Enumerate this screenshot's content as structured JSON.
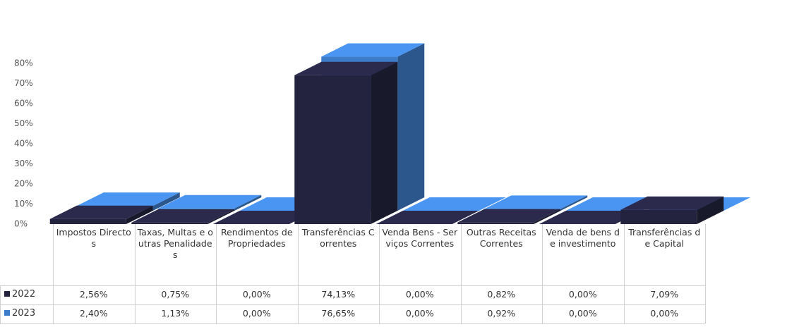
{
  "chart_data": {
    "type": "bar3d",
    "categories": [
      "Impostos Directos",
      "Taxas, Multas e outras Penalidades",
      "Rendimentos de Propriedades",
      "Transferências Correntes",
      "Venda Bens - Serviços Correntes",
      "Outras Receitas Correntes",
      "Venda de bens de investimento",
      "Transferências de Capital"
    ],
    "series": [
      {
        "name": "2022",
        "color": "#24233f",
        "values": [
          2.56,
          0.75,
          0,
          74.13,
          0,
          0.82,
          0,
          7.09
        ],
        "value_labels": [
          "2,56%",
          "0,75%",
          "0,00%",
          "74,13%",
          "0,00%",
          "0,82%",
          "0,00%",
          "7,09%"
        ]
      },
      {
        "name": "2023",
        "color": "#3d7cc9",
        "values": [
          2.4,
          1.13,
          0,
          76.65,
          0,
          0.92,
          0,
          0
        ],
        "value_labels": [
          "2,40%",
          "1,13%",
          "0,00%",
          "76,65%",
          "0,00%",
          "0,92%",
          "0,00%",
          "0,00%"
        ]
      }
    ],
    "ylim": [
      0,
      80
    ],
    "yticks": [
      {
        "value": 0,
        "label": "0%"
      },
      {
        "value": 10,
        "label": "10%"
      },
      {
        "value": 20,
        "label": "20%"
      },
      {
        "value": 30,
        "label": "30%"
      },
      {
        "value": 40,
        "label": "40%"
      },
      {
        "value": 50,
        "label": "50%"
      },
      {
        "value": 60,
        "label": "60%"
      },
      {
        "value": 70,
        "label": "70%"
      },
      {
        "value": 80,
        "label": "80%"
      }
    ],
    "grid": false
  }
}
